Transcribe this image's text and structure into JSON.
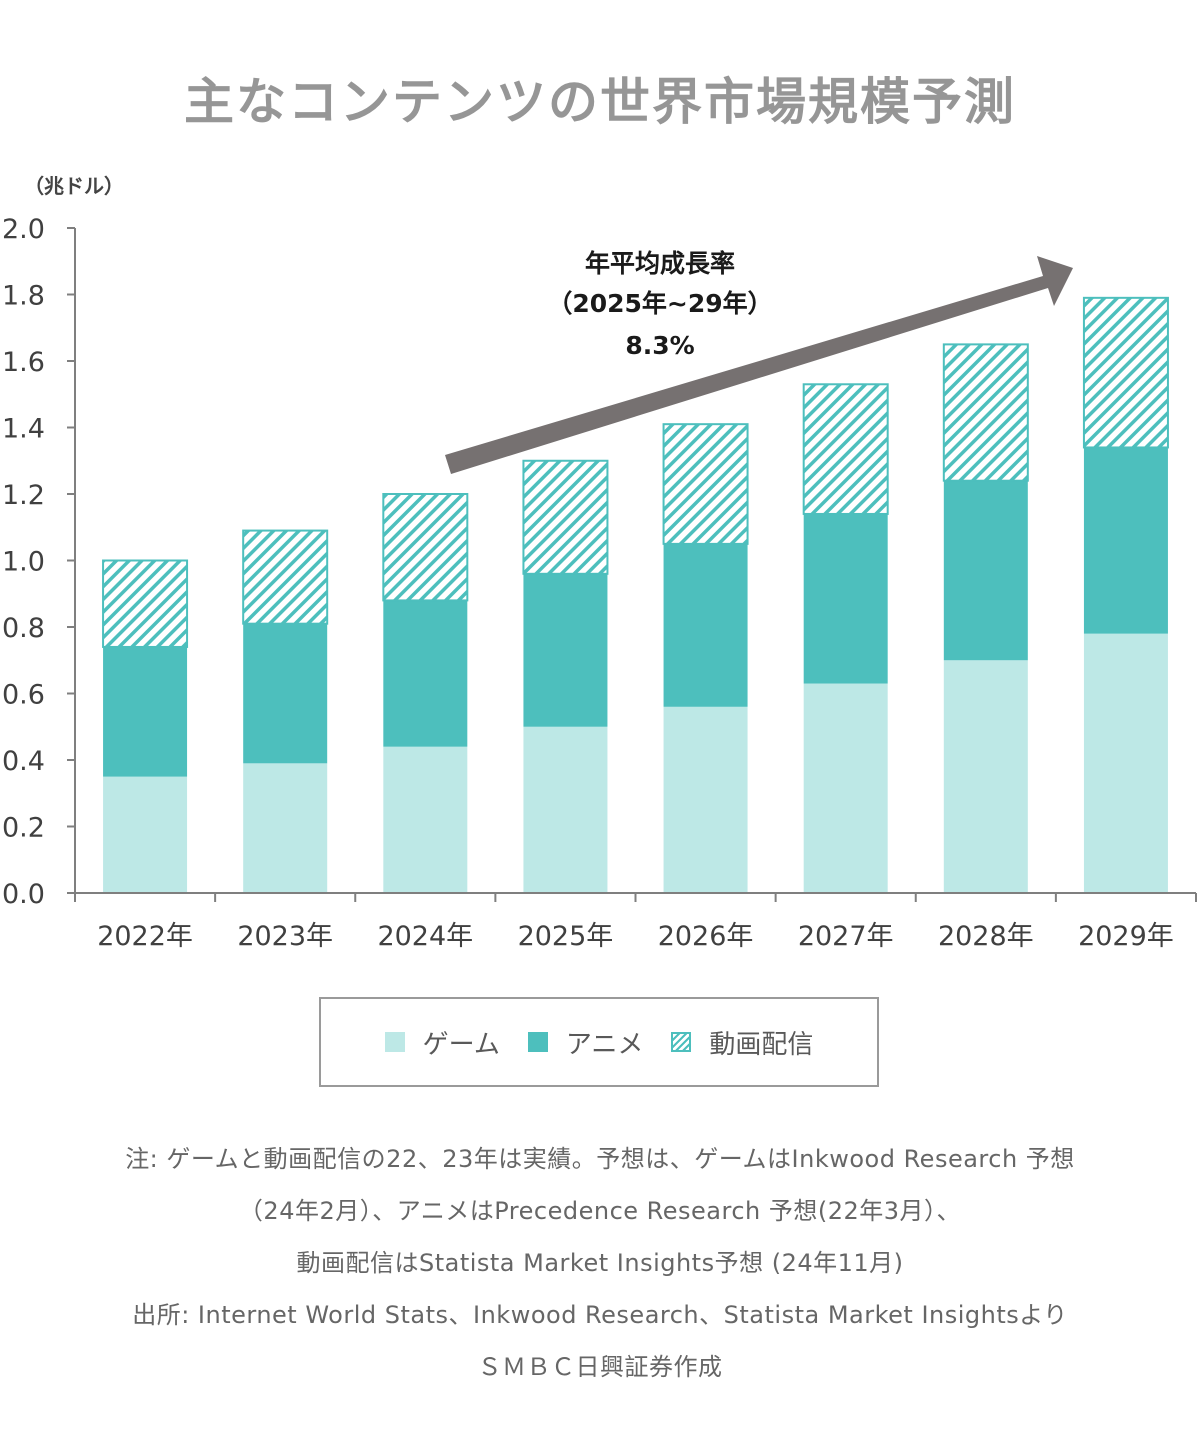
{
  "title": "主なコンテンツの世界市場規模予測",
  "colors": {
    "game": "#bde8e6",
    "anime": "#4dbfbd",
    "video": "#4dbfbd",
    "arrow": "#767171",
    "axis": "#7f7f7f",
    "text": "#404040"
  },
  "annotation": {
    "line1": "年平均成長率",
    "line2": "（2025年~29年）",
    "line3": "8.3%"
  },
  "legend": [
    {
      "label": "ゲーム",
      "style": "solid-light"
    },
    {
      "label": "アニメ",
      "style": "solid-dark"
    },
    {
      "label": "動画配信",
      "style": "hatched"
    }
  ],
  "notes": [
    "注: ゲームと動画配信の22、23年は実績。予想は、ゲームはInkwood Research 予想",
    "（24年2月）、アニメはPrecedence Research 予想(22年3月）、",
    "動画配信はStatista Market Insights予想 (24年11月)",
    "出所: Internet World Stats、Inkwood Research、Statista Market Insightsより",
    "ＳＭＢＣ日興証券作成"
  ],
  "chart_data": {
    "type": "bar",
    "stacked": true,
    "title": "主なコンテンツの世界市場規模予測",
    "ylabel": "（兆ドル）",
    "xlabel": "",
    "ylim": [
      0,
      2.0
    ],
    "yticks": [
      "0.0",
      "0.2",
      "0.4",
      "0.6",
      "0.8",
      "1.0",
      "1.2",
      "1.4",
      "1.6",
      "1.8",
      "2.0"
    ],
    "ytick_values": [
      0,
      0.2,
      0.4,
      0.6,
      0.8,
      1.0,
      1.2,
      1.4,
      1.6,
      1.8,
      2.0
    ],
    "categories": [
      "2022年",
      "2023年",
      "2024年",
      "2025年",
      "2026年",
      "2027年",
      "2028年",
      "2029年"
    ],
    "series": [
      {
        "name": "ゲーム",
        "values": [
          0.35,
          0.39,
          0.44,
          0.5,
          0.56,
          0.63,
          0.7,
          0.78
        ]
      },
      {
        "name": "アニメ",
        "values": [
          0.39,
          0.42,
          0.44,
          0.46,
          0.49,
          0.51,
          0.54,
          0.56
        ]
      },
      {
        "name": "動画配信",
        "values": [
          0.26,
          0.28,
          0.32,
          0.34,
          0.36,
          0.39,
          0.41,
          0.45
        ]
      }
    ],
    "grid": false,
    "legend_position": "bottom",
    "annotation": "年平均成長率（2025年~29年）8.3%",
    "cagr_percent": 8.3
  }
}
